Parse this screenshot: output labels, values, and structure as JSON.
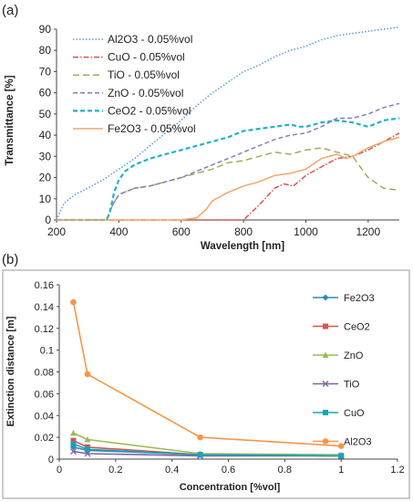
{
  "chart_data": [
    {
      "panel_label": "(a)",
      "type": "line",
      "xlabel": "Wavelength [nm]",
      "ylabel": "Transmittance [%]",
      "xlim": [
        200,
        1300
      ],
      "ylim": [
        0,
        90
      ],
      "xticks": [
        200,
        400,
        600,
        800,
        1000,
        1200
      ],
      "yticks": [
        0,
        10,
        20,
        30,
        40,
        50,
        60,
        70,
        80,
        90
      ],
      "grid": "none",
      "legend": "top-left",
      "series": [
        {
          "name": "Al2O3 - 0.05%vol",
          "color": "#5b9bd5",
          "dash": "1.5 2",
          "points": [
            [
              200,
              0
            ],
            [
              212,
              4
            ],
            [
              225,
              8
            ],
            [
              260,
              12
            ],
            [
              300,
              15
            ],
            [
              350,
              19
            ],
            [
              400,
              24
            ],
            [
              450,
              29
            ],
            [
              500,
              35
            ],
            [
              550,
              41
            ],
            [
              600,
              47
            ],
            [
              650,
              54
            ],
            [
              700,
              60
            ],
            [
              750,
              65
            ],
            [
              800,
              70
            ],
            [
              850,
              73
            ],
            [
              900,
              77
            ],
            [
              950,
              80
            ],
            [
              1000,
              82
            ],
            [
              1050,
              85
            ],
            [
              1100,
              87
            ],
            [
              1150,
              88
            ],
            [
              1200,
              89
            ],
            [
              1250,
              90
            ],
            [
              1300,
              91
            ]
          ]
        },
        {
          "name": "CuO - 0.05%vol",
          "color": "#d9534f",
          "dash": "6 2 1.5 2",
          "points": [
            [
              200,
              0
            ],
            [
              750,
              0
            ],
            [
              800,
              0
            ],
            [
              850,
              7
            ],
            [
              900,
              15
            ],
            [
              930,
              17
            ],
            [
              960,
              16
            ],
            [
              1000,
              21
            ],
            [
              1050,
              25
            ],
            [
              1100,
              29
            ],
            [
              1150,
              30
            ],
            [
              1200,
              33
            ],
            [
              1250,
              37
            ],
            [
              1300,
              41
            ]
          ]
        },
        {
          "name": "TiO - 0.05%vol",
          "color": "#9ab05a",
          "dash": "7 4",
          "points": [
            [
              200,
              0
            ],
            [
              360,
              0
            ],
            [
              380,
              7
            ],
            [
              400,
              12
            ],
            [
              450,
              15
            ],
            [
              500,
              16
            ],
            [
              550,
              18
            ],
            [
              600,
              20
            ],
            [
              650,
              22
            ],
            [
              700,
              24
            ],
            [
              750,
              27
            ],
            [
              800,
              28
            ],
            [
              850,
              30
            ],
            [
              900,
              32
            ],
            [
              950,
              31
            ],
            [
              1000,
              33
            ],
            [
              1050,
              34
            ],
            [
              1100,
              32
            ],
            [
              1150,
              30
            ],
            [
              1200,
              20
            ],
            [
              1250,
              15
            ],
            [
              1300,
              14
            ]
          ]
        },
        {
          "name": "ZnO - 0.05%vol",
          "color": "#8c7ab8",
          "dash": "5 3",
          "points": [
            [
              200,
              0
            ],
            [
              360,
              0
            ],
            [
              380,
              7
            ],
            [
              400,
              12
            ],
            [
              450,
              15
            ],
            [
              500,
              16
            ],
            [
              550,
              18
            ],
            [
              600,
              20
            ],
            [
              650,
              23
            ],
            [
              700,
              26
            ],
            [
              750,
              29
            ],
            [
              800,
              32
            ],
            [
              850,
              35
            ],
            [
              900,
              38
            ],
            [
              950,
              40
            ],
            [
              1000,
              41
            ],
            [
              1050,
              44
            ],
            [
              1100,
              48
            ],
            [
              1150,
              48
            ],
            [
              1200,
              50
            ],
            [
              1250,
              53
            ],
            [
              1300,
              55
            ]
          ]
        },
        {
          "name": "CeO2 - 0.05%vol",
          "color": "#21b3c6",
          "dash": "5 3",
          "points": [
            [
              200,
              0
            ],
            [
              360,
              0
            ],
            [
              370,
              3
            ],
            [
              385,
              13
            ],
            [
              400,
              19
            ],
            [
              420,
              23
            ],
            [
              450,
              26
            ],
            [
              500,
              29
            ],
            [
              550,
              31
            ],
            [
              600,
              33
            ],
            [
              650,
              35
            ],
            [
              700,
              37
            ],
            [
              750,
              39
            ],
            [
              800,
              42
            ],
            [
              850,
              43
            ],
            [
              900,
              44
            ],
            [
              950,
              45
            ],
            [
              980,
              44
            ],
            [
              1000,
              44
            ],
            [
              1050,
              46
            ],
            [
              1100,
              47
            ],
            [
              1150,
              46
            ],
            [
              1200,
              44
            ],
            [
              1250,
              47
            ],
            [
              1300,
              48
            ]
          ]
        },
        {
          "name": "Fe2O3 - 0.05%vol",
          "color": "#f2a66a",
          "dash": "",
          "points": [
            [
              200,
              0
            ],
            [
              600,
              0
            ],
            [
              650,
              1
            ],
            [
              680,
              5
            ],
            [
              700,
              9
            ],
            [
              750,
              13
            ],
            [
              800,
              16
            ],
            [
              850,
              18
            ],
            [
              900,
              21
            ],
            [
              950,
              22
            ],
            [
              1000,
              24
            ],
            [
              1050,
              29
            ],
            [
              1100,
              31
            ],
            [
              1130,
              29
            ],
            [
              1150,
              30
            ],
            [
              1200,
              34
            ],
            [
              1250,
              37
            ],
            [
              1300,
              39
            ]
          ]
        }
      ]
    },
    {
      "panel_label": "(b)",
      "type": "line",
      "xlabel": "Concentration [%vol]",
      "ylabel": "Extinction distance [m]",
      "xlim": [
        0,
        1.2
      ],
      "ylim": [
        0,
        0.16
      ],
      "xticks": [
        "0",
        "0.2",
        "0.4",
        "0.6",
        "0.8",
        "1",
        "1.2"
      ],
      "yticks": [
        "0",
        "0.02",
        "0.04",
        "0.06",
        "0.08",
        "0.1",
        "0.12",
        "0.14",
        "0.16"
      ],
      "grid": "none",
      "legend": "right",
      "x": [
        0.05,
        0.1,
        0.5,
        1
      ],
      "series": [
        {
          "name": "Fe2O3",
          "color": "#2b8ab8",
          "marker": "diamond",
          "values": [
            0.011,
            0.008,
            0.004,
            0.003
          ]
        },
        {
          "name": "CeO2",
          "color": "#d9534f",
          "marker": "square",
          "values": [
            0.017,
            0.011,
            0.004,
            0.003
          ]
        },
        {
          "name": "ZnO",
          "color": "#9bbb59",
          "marker": "triangle",
          "values": [
            0.024,
            0.018,
            0.005,
            0.004
          ]
        },
        {
          "name": "TiO",
          "color": "#8064a2",
          "marker": "x",
          "values": [
            0.007,
            0.005,
            0.003,
            0.003
          ]
        },
        {
          "name": "CuO",
          "color": "#1aa3b5",
          "marker": "square",
          "values": [
            0.014,
            0.009,
            0.004,
            0.003
          ]
        },
        {
          "name": "Al2O3",
          "color": "#f79646",
          "marker": "circle",
          "values": [
            0.144,
            0.078,
            0.02,
            0.012
          ]
        }
      ]
    }
  ]
}
